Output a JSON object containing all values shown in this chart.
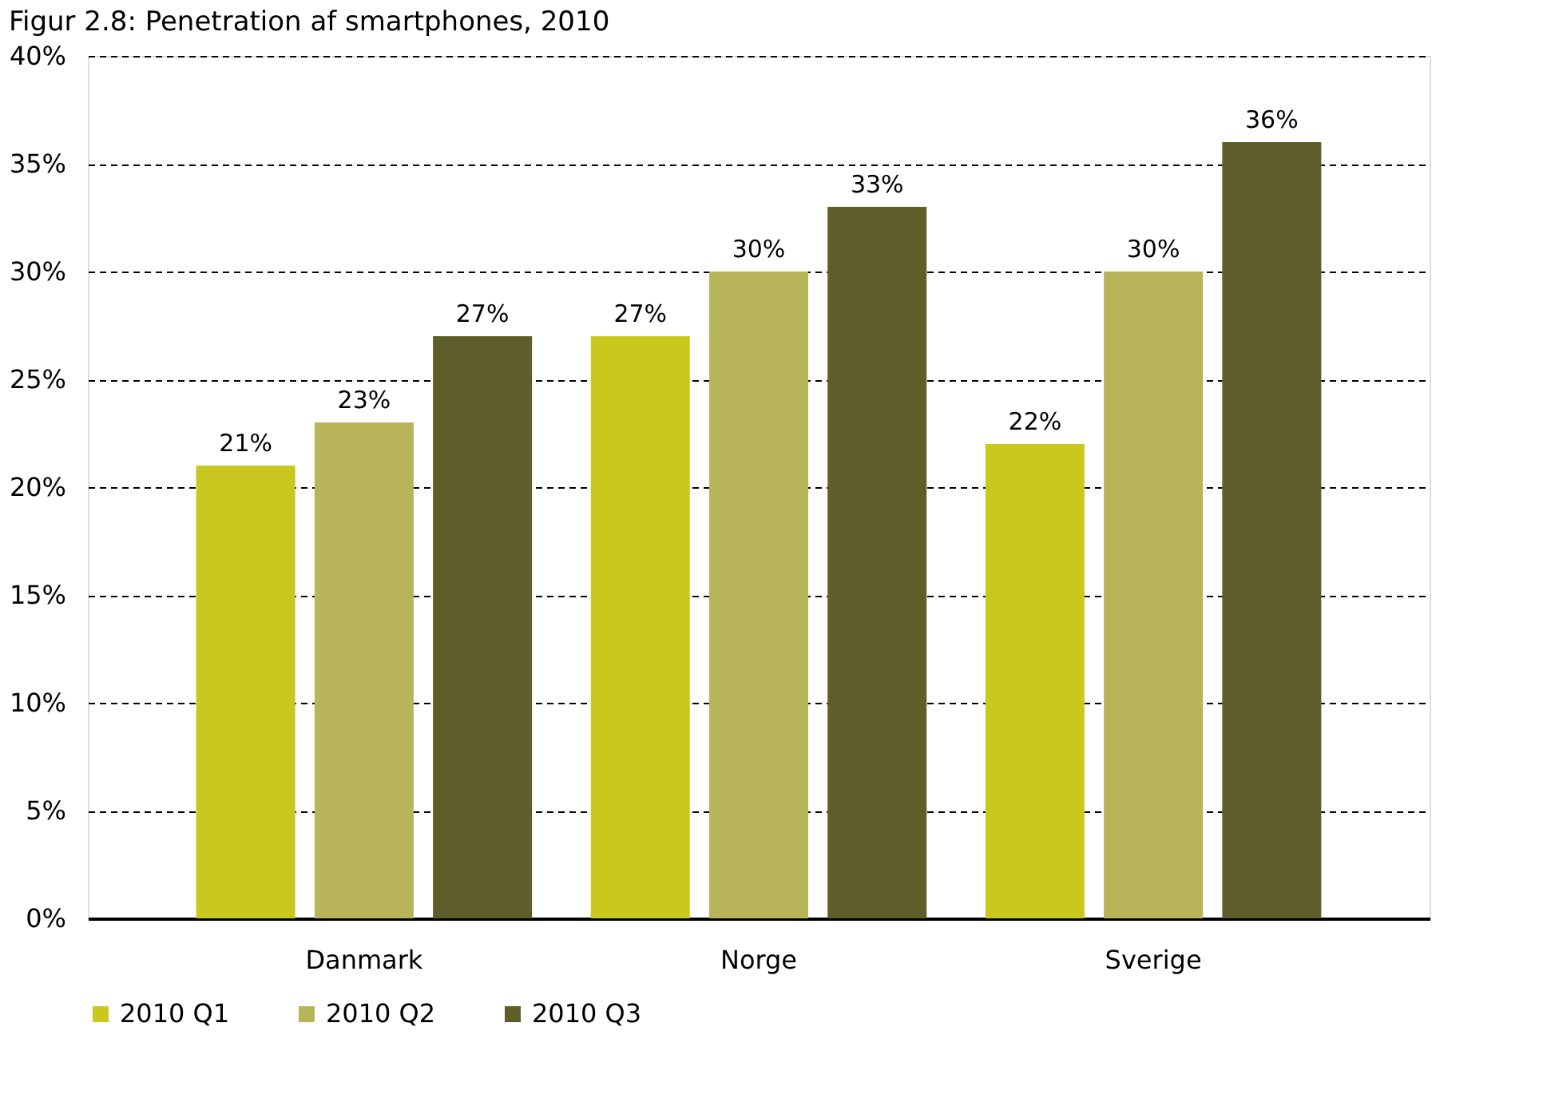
{
  "chart_data": {
    "type": "bar",
    "title": "Figur 2.8: Penetration af smartphones, 2010",
    "categories": [
      "Danmark",
      "Norge",
      "Sverige"
    ],
    "series": [
      {
        "name": "2010 Q1",
        "color": "#c8c81e",
        "values": [
          21,
          27,
          22
        ]
      },
      {
        "name": "2010 Q2",
        "color": "#b8b45a",
        "values": [
          23,
          30,
          30
        ]
      },
      {
        "name": "2010 Q3",
        "color": "#5e5e2a",
        "values": [
          27,
          33,
          36
        ]
      }
    ],
    "ylim": [
      0,
      40
    ],
    "yticks": [
      {
        "value": 0,
        "label": "0%"
      },
      {
        "value": 5,
        "label": "5%"
      },
      {
        "value": 10,
        "label": "10%"
      },
      {
        "value": 15,
        "label": "15%"
      },
      {
        "value": 20,
        "label": "20%"
      },
      {
        "value": 25,
        "label": "25%"
      },
      {
        "value": 30,
        "label": "30%"
      },
      {
        "value": 35,
        "label": "35%"
      },
      {
        "value": 40,
        "label": "40%"
      }
    ],
    "value_labels": [
      [
        "21%",
        "27%",
        "22%"
      ],
      [
        "23%",
        "30%",
        "30%"
      ],
      [
        "27%",
        "33%",
        "36%"
      ]
    ],
    "grid": "y",
    "legend": "bottom"
  }
}
